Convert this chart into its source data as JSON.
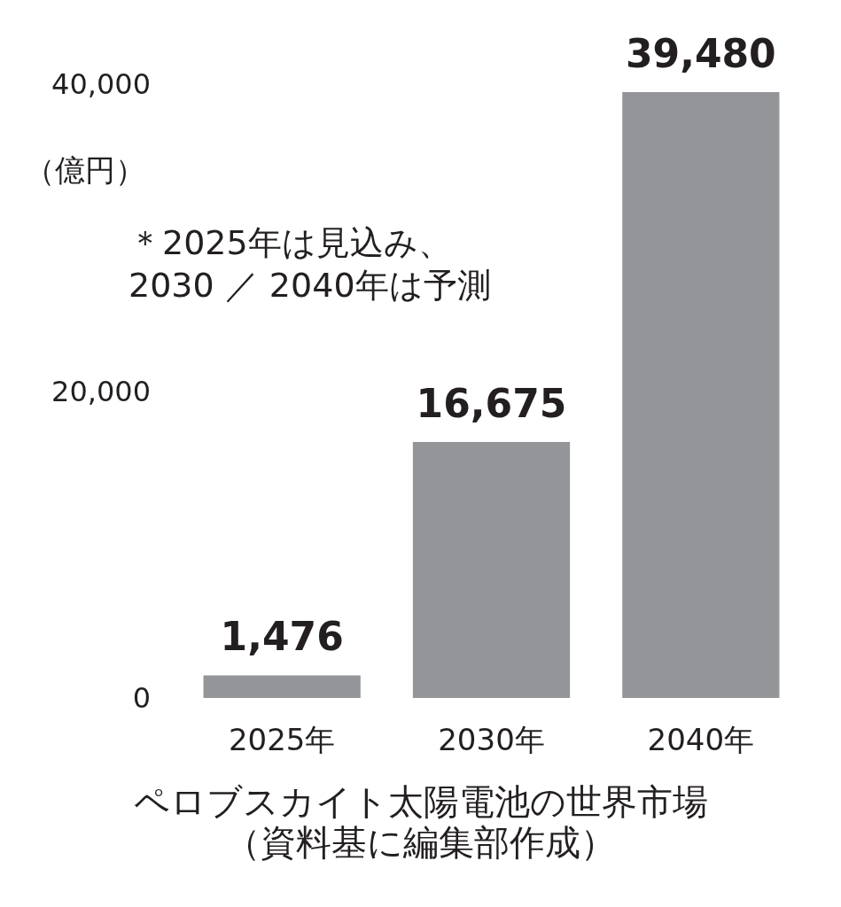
{
  "chart_data": {
    "type": "bar",
    "title": "ペロブスカイト太陽電池の世界市場",
    "subtitle": "（資料基に編集部作成）",
    "ylabel": "（億円）",
    "annotations": [
      "＊2025年は見込み、\n2030 ／ 2040年は予測"
    ],
    "categories": [
      "2025年",
      "2030年",
      "2040年"
    ],
    "values": [
      1476,
      16675,
      39480
    ],
    "value_labels": [
      "1,476",
      "16,675",
      "39,480"
    ],
    "color": "#939598",
    "ylim": [
      0,
      40000
    ],
    "yticks": [
      {
        "value": 0,
        "label": "0"
      },
      {
        "value": 20000,
        "label": "20,000"
      },
      {
        "value": 40000,
        "label": "40,000"
      }
    ]
  }
}
